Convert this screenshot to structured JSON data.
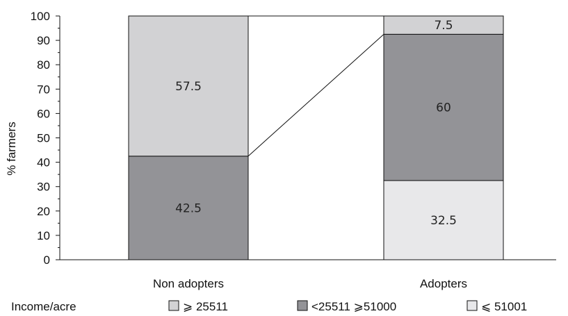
{
  "chart_data": {
    "type": "bar",
    "stacked": true,
    "categories": [
      "Non adopters",
      "Adopters"
    ],
    "series": [
      {
        "name": "⩽ 51001",
        "values": [
          0,
          32.5
        ],
        "color": "#e8e8ea"
      },
      {
        "name": "<25511 ⩾51000",
        "values": [
          42.5,
          60
        ],
        "color": "#939397"
      },
      {
        "name": "⩾ 25511",
        "values": [
          57.5,
          7.5
        ],
        "color": "#d2d2d4"
      }
    ],
    "legend_order": [
      "⩾ 25511",
      "<25511 ⩾51000",
      "⩽ 51001"
    ],
    "legend_title": "Income/acre",
    "legend_placement": "bottom",
    "ylabel": "% farmers",
    "xlabel": "",
    "ylim": [
      0,
      100
    ],
    "yticks": [
      "0",
      "10",
      "20",
      "30",
      "40",
      "50",
      "60",
      "70",
      "80",
      "90",
      "100"
    ],
    "grid": false,
    "connector_lines": true
  }
}
